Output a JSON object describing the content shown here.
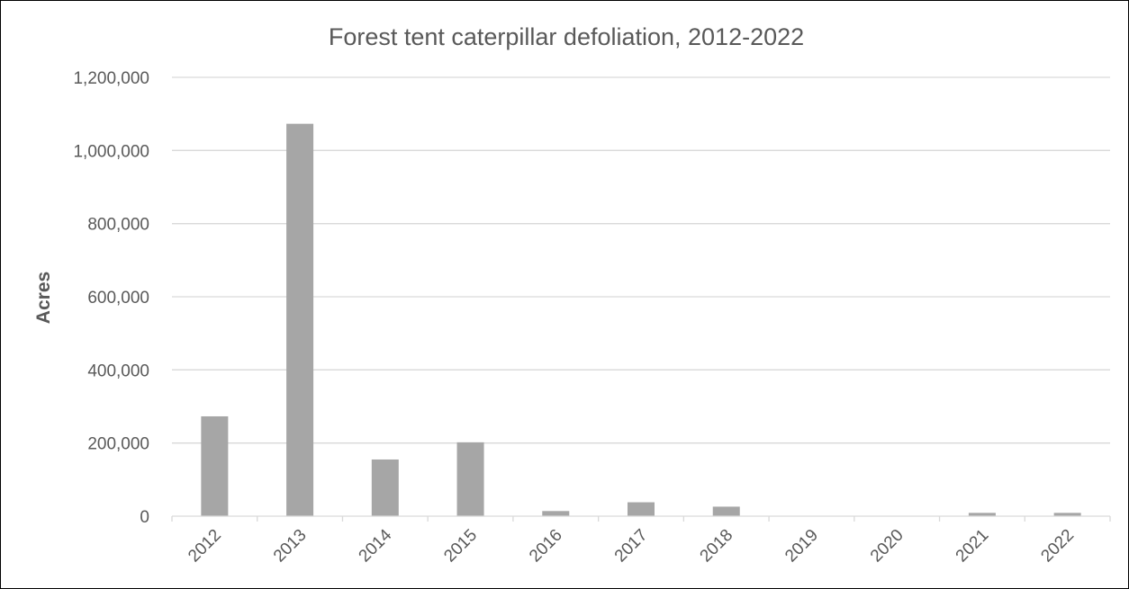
{
  "chart_data": {
    "type": "bar",
    "title": "Forest tent caterpillar defoliation, 2012-2022",
    "xlabel": "",
    "ylabel": "Acres",
    "categories": [
      "2012",
      "2013",
      "2014",
      "2015",
      "2016",
      "2017",
      "2018",
      "2019",
      "2020",
      "2021",
      "2022"
    ],
    "values": [
      273000,
      1073000,
      155000,
      202000,
      14000,
      38000,
      26000,
      0,
      0,
      9000,
      9000
    ],
    "ylim": [
      0,
      1200000
    ],
    "yticks": [
      0,
      200000,
      400000,
      600000,
      800000,
      1000000,
      1200000
    ],
    "ytick_labels": [
      "0",
      "200,000",
      "400,000",
      "600,000",
      "800,000",
      "1,000,000",
      "1,200,000"
    ],
    "grid": true,
    "legend": "none",
    "colors": {
      "bar": "#a6a6a6",
      "grid": "#d9d9d9",
      "text": "#595959",
      "border": "#000000"
    }
  }
}
